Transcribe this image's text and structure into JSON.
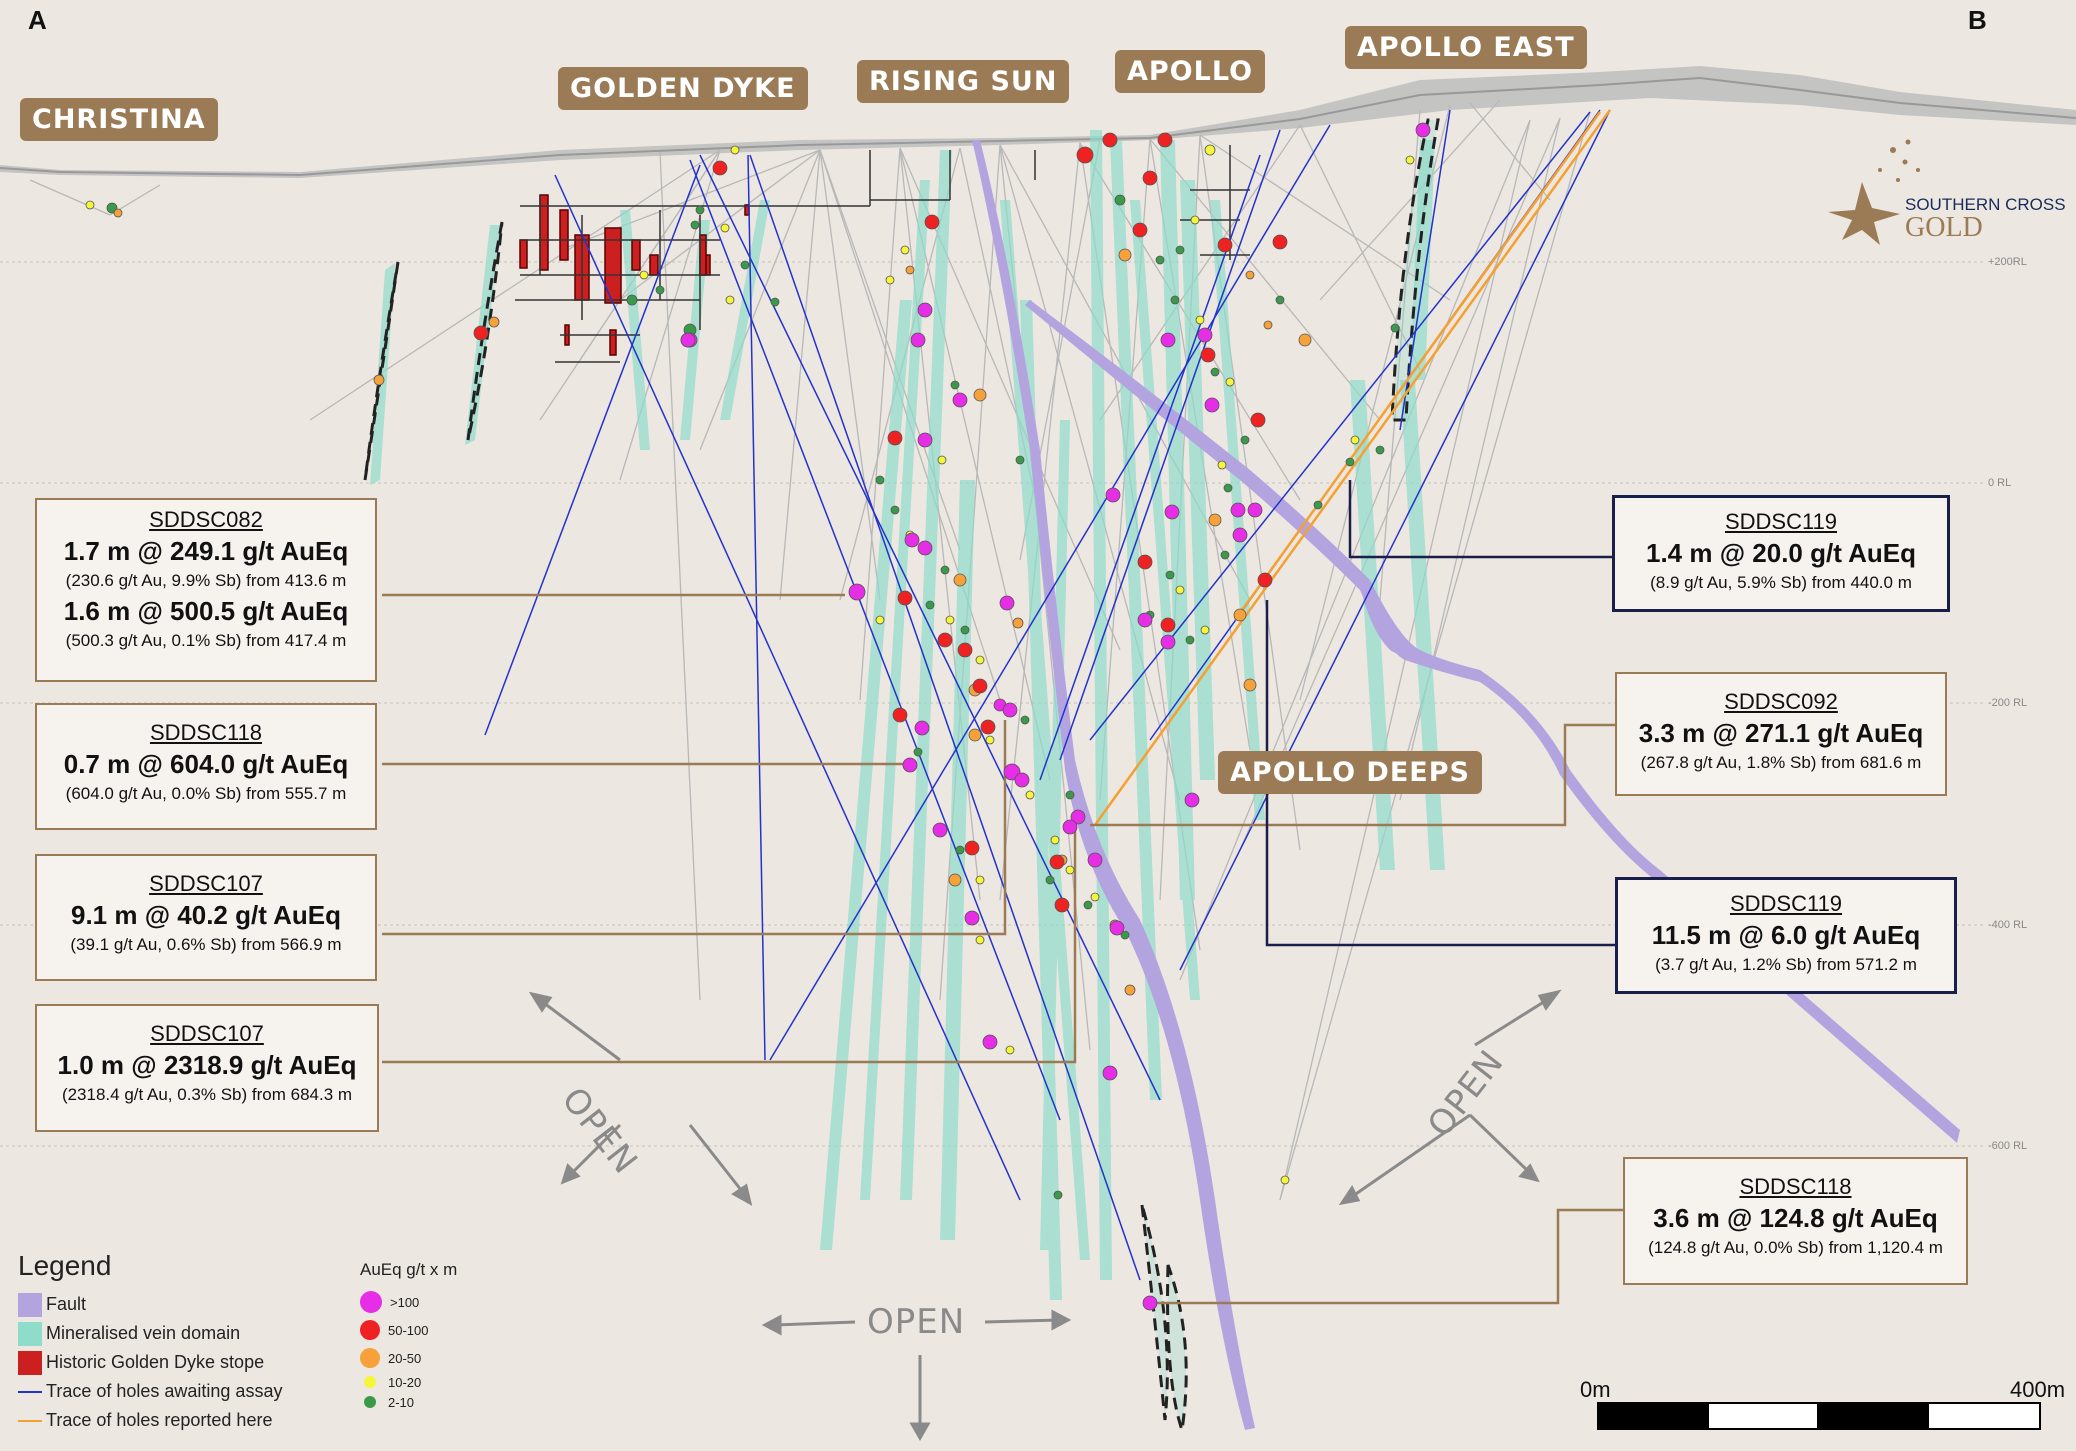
{
  "corners": {
    "left": "A",
    "right": "B"
  },
  "areas": [
    {
      "key": "christina",
      "label": "CHRISTINA"
    },
    {
      "key": "golden_dyke",
      "label": "GOLDEN DYKE"
    },
    {
      "key": "rising_sun",
      "label": "RISING SUN"
    },
    {
      "key": "apollo",
      "label": "APOLLO"
    },
    {
      "key": "apollo_east",
      "label": "APOLLO EAST"
    },
    {
      "key": "apollo_deeps",
      "label": "APOLLO DEEPS"
    }
  ],
  "rl_labels": [
    "+200RL",
    "0 RL",
    "-200 RL",
    "-400 RL",
    "-600 RL"
  ],
  "callouts": [
    {
      "hole": "SDDSC082",
      "lines": [
        {
          "interval": "1.7 m @ 249.1 g/t AuEq",
          "detail": "(230.6 g/t Au, 9.9% Sb) from 413.6 m"
        },
        {
          "interval": "1.6 m @ 500.5 g/t AuEq",
          "detail": "(500.3 g/t Au, 0.1% Sb) from 417.4 m"
        }
      ]
    },
    {
      "hole": "SDDSC118",
      "lines": [
        {
          "interval": "0.7 m @ 604.0 g/t AuEq",
          "detail": "(604.0 g/t Au, 0.0% Sb) from 555.7 m"
        }
      ]
    },
    {
      "hole": "SDDSC107",
      "lines": [
        {
          "interval": "9.1 m @ 40.2 g/t AuEq",
          "detail": "(39.1 g/t Au, 0.6% Sb) from 566.9 m"
        }
      ]
    },
    {
      "hole": "SDDSC107",
      "lines": [
        {
          "interval": "1.0 m @ 2318.9 g/t AuEq",
          "detail": "(2318.4 g/t Au, 0.3% Sb) from 684.3 m"
        }
      ]
    },
    {
      "hole": "SDDSC119",
      "lines": [
        {
          "interval": "1.4 m @ 20.0 g/t AuEq",
          "detail": "(8.9 g/t Au, 5.9% Sb) from 440.0 m"
        }
      ]
    },
    {
      "hole": "SDDSC092",
      "lines": [
        {
          "interval": "3.3 m @ 271.1 g/t AuEq",
          "detail": "(267.8 g/t Au, 1.8% Sb) from 681.6 m"
        }
      ]
    },
    {
      "hole": "SDDSC119",
      "lines": [
        {
          "interval": "11.5 m @ 6.0 g/t AuEq",
          "detail": "(3.7 g/t Au, 1.2% Sb) from 571.2 m"
        }
      ]
    },
    {
      "hole": "SDDSC118",
      "lines": [
        {
          "interval": "3.6 m @ 124.8 g/t AuEq",
          "detail": "(124.8 g/t Au, 0.0% Sb) from 1,120.4 m"
        }
      ]
    }
  ],
  "open_label": "OPEN",
  "legend": {
    "title": "Legend",
    "items": [
      {
        "label": "Fault",
        "color": "#b3a4e0",
        "kind": "swatch"
      },
      {
        "label": "Mineralised vein domain",
        "color": "#8fdccb",
        "kind": "swatch"
      },
      {
        "label": "Historic Golden Dyke stope",
        "color": "#cc1f1f",
        "kind": "swatch"
      },
      {
        "label": "Trace of holes awaiting assay",
        "color": "#2233cc",
        "kind": "line"
      },
      {
        "label": "Trace of holes reported here",
        "color": "#f5a030",
        "kind": "line"
      }
    ]
  },
  "grade_legend": {
    "title": "AuEq g/t x m",
    "items": [
      {
        "label": ">100",
        "color": "#e52ee5",
        "size": 22
      },
      {
        "label": "50-100",
        "color": "#ee2222",
        "size": 20
      },
      {
        "label": "20-50",
        "color": "#f7a13a",
        "size": 20
      },
      {
        "label": "10-20",
        "color": "#f5f53a",
        "size": 12
      },
      {
        "label": "2-10",
        "color": "#3b9a4a",
        "size": 12
      }
    ]
  },
  "logo": {
    "line1": "SOUTHERN CROSS",
    "line2": "GOLD"
  },
  "scale_bar": {
    "start": "0m",
    "end": "400m"
  }
}
